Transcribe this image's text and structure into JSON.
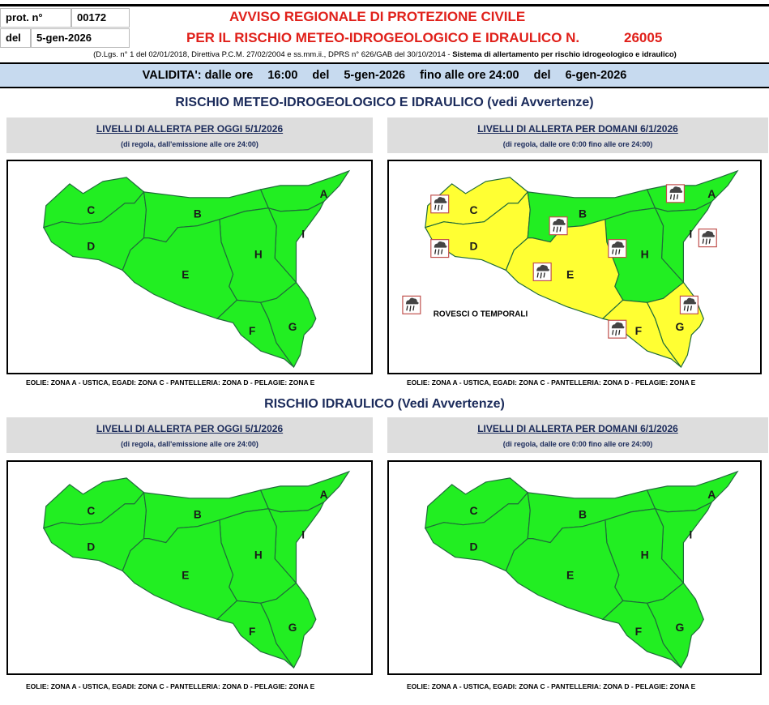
{
  "header": {
    "prot_label": "prot. n°",
    "prot_value": "00172",
    "del_label": "del",
    "del_value": "5-gen-2026",
    "title1": "AVVISO REGIONALE DI PROTEZIONE CIVILE",
    "title2": "PER IL RISCHIO METEO-IDROGEOLOGICO E IDRAULICO N.",
    "number": "26005",
    "legal": "(D.Lgs. n° 1 del 02/01/2018, Direttiva P.C.M. 27/02/2004 e ss.mm.ii., DPRS n° 626/GAB del 30/10/2014 - ",
    "legal_bold": "Sistema di allertamento per rischio idrogeologico e idraulico)"
  },
  "validity": {
    "label": "VALIDITA': dalle ore",
    "from_time": "16:00",
    "del1": "del",
    "from_date": "5-gen-2026",
    "until": "fino alle ore 24:00",
    "del2": "del",
    "to_date": "6-gen-2026"
  },
  "colors": {
    "green": "#22ee22",
    "yellow": "#ffff33",
    "border": "#1f6b3a"
  },
  "sections": [
    {
      "title": "RISCHIO METEO-IDROGEOLOGICO E IDRAULICO (vedi Avvertenze)",
      "panels": [
        {
          "heading": "LIVELLI DI ALLERTA PER OGGI 5/1/2026",
          "sub": "(di regola, dall'emissione alle ore 24:00)",
          "zones": {
            "A": "green",
            "B": "green",
            "C": "green",
            "D": "green",
            "E": "green",
            "F": "green",
            "G": "green",
            "H": "green",
            "I": "green"
          },
          "icons": [],
          "legend": null,
          "footer": "EOLIE: ZONA A - USTICA, EGADI: ZONA C - PANTELLERIA: ZONA D - PELAGIE: ZONA E"
        },
        {
          "heading": "LIVELLI DI ALLERTA PER DOMANI 6/1/2026",
          "sub": "(di regola, dalle ore 0:00 fino alle ore 24:00)",
          "zones": {
            "A": "green",
            "B": "green",
            "C": "yellow",
            "D": "yellow",
            "E": "yellow",
            "F": "yellow",
            "G": "yellow",
            "H": "green",
            "I": "green"
          },
          "icons": [
            "A",
            "B",
            "C",
            "D",
            "E",
            "F",
            "G",
            "H",
            "I"
          ],
          "icon_type": "rain-thunder-icon",
          "legend": "ROVESCI O TEMPORALI",
          "footer": "EOLIE: ZONA A - USTICA, EGADI: ZONA C - PANTELLERIA: ZONA D - PELAGIE: ZONA E"
        }
      ]
    },
    {
      "title": "RISCHIO IDRAULICO (Vedi Avvertenze)",
      "panels": [
        {
          "heading": "LIVELLI DI ALLERTA PER OGGI 5/1/2026",
          "sub": "(di regola, dall'emissione alle ore 24:00)",
          "zones": {
            "A": "green",
            "B": "green",
            "C": "green",
            "D": "green",
            "E": "green",
            "F": "green",
            "G": "green",
            "H": "green",
            "I": "green"
          },
          "icons": [],
          "legend": null,
          "footer": "EOLIE: ZONA A - USTICA, EGADI: ZONA C - PANTELLERIA: ZONA D - PELAGIE: ZONA E"
        },
        {
          "heading": "LIVELLI DI ALLERTA PER DOMANI 6/1/2026",
          "sub": "(di regola, dalle ore 0:00 fino alle ore 24:00)",
          "zones": {
            "A": "green",
            "B": "green",
            "C": "green",
            "D": "green",
            "E": "green",
            "F": "green",
            "G": "green",
            "H": "green",
            "I": "green"
          },
          "icons": [],
          "legend": null,
          "footer": "EOLIE: ZONA A - USTICA, EGADI: ZONA C - PANTELLERIA: ZONA D - PELAGIE: ZONA E"
        }
      ]
    }
  ]
}
